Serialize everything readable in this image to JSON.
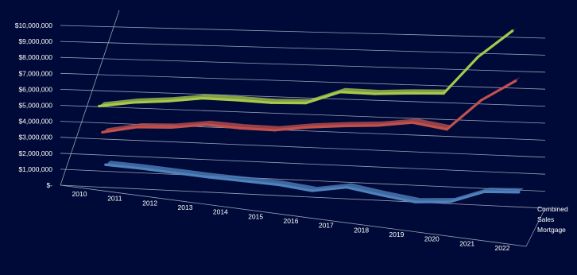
{
  "chart_data": {
    "type": "line",
    "title": "",
    "xlabel": "",
    "ylabel": "",
    "three_d": true,
    "grid": true,
    "ylim": [
      0,
      10000000
    ],
    "y_ticks": [
      {
        "value": 0,
        "label": "$-"
      },
      {
        "value": 1000000,
        "label": "$1,000,000"
      },
      {
        "value": 2000000,
        "label": "$2,000,000"
      },
      {
        "value": 3000000,
        "label": "$3,000,000"
      },
      {
        "value": 4000000,
        "label": "$4,000,000"
      },
      {
        "value": 5000000,
        "label": "$5,000,000"
      },
      {
        "value": 6000000,
        "label": "$6,000,000"
      },
      {
        "value": 7000000,
        "label": "$7,000,000"
      },
      {
        "value": 8000000,
        "label": "$8,000,000"
      },
      {
        "value": 9000000,
        "label": "$9,000,000"
      },
      {
        "value": 10000000,
        "label": "$10,000,000"
      }
    ],
    "categories": [
      "2010",
      "2011",
      "2012",
      "2013",
      "2014",
      "2015",
      "2016",
      "2017",
      "2018",
      "2019",
      "2020",
      "2021",
      "2022"
    ],
    "series": [
      {
        "name": "Combined",
        "color": "#a6c84b",
        "values": [
          4400000,
          4700000,
          4850000,
          5100000,
          5050000,
          4950000,
          5000000,
          5750000,
          5700000,
          5800000,
          5850000,
          8150000,
          9800000
        ]
      },
      {
        "name": "Sales",
        "color": "#c0504d",
        "values": [
          2900000,
          3300000,
          3350000,
          3600000,
          3450000,
          3400000,
          3650000,
          3800000,
          3900000,
          4150000,
          3800000,
          5650000,
          6900000
        ]
      },
      {
        "name": "Mortgage",
        "color": "#4f81bd",
        "values": [
          1000000,
          850000,
          650000,
          450000,
          300000,
          150000,
          -150000,
          150000,
          -250000,
          -600000,
          -500000,
          200000,
          250000
        ]
      }
    ]
  }
}
